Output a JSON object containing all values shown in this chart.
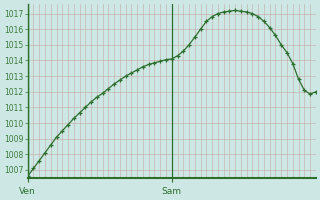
{
  "background_color": "#cde8e4",
  "plot_bg_color": "#cde8e4",
  "line_color": "#2d6e2d",
  "marker_color": "#2d6e2d",
  "vgrid_color": "#c4a8a8",
  "hgrid_color": "#c4a8a8",
  "axis_color": "#2d6e2d",
  "label_color": "#3a7a3a",
  "ylim": [
    1006.5,
    1017.6
  ],
  "yticks": [
    1007,
    1008,
    1009,
    1010,
    1011,
    1012,
    1013,
    1014,
    1015,
    1016,
    1017
  ],
  "xtick_labels": [
    "Ven",
    "Sam"
  ],
  "xtick_positions": [
    0.0,
    0.5
  ],
  "vline_positions": [
    0.0,
    0.5
  ],
  "n_vlines": 50,
  "x": [
    0.0,
    0.02,
    0.04,
    0.06,
    0.08,
    0.1,
    0.12,
    0.14,
    0.16,
    0.18,
    0.2,
    0.22,
    0.24,
    0.26,
    0.28,
    0.3,
    0.32,
    0.34,
    0.36,
    0.38,
    0.4,
    0.42,
    0.44,
    0.46,
    0.48,
    0.5,
    0.52,
    0.54,
    0.56,
    0.58,
    0.6,
    0.62,
    0.64,
    0.66,
    0.68,
    0.7,
    0.72,
    0.74,
    0.76,
    0.78,
    0.8,
    0.82,
    0.84,
    0.86,
    0.88,
    0.9,
    0.92,
    0.94,
    0.96,
    0.98,
    1.0
  ],
  "y": [
    1006.6,
    1007.1,
    1007.6,
    1008.1,
    1008.6,
    1009.1,
    1009.5,
    1009.9,
    1010.3,
    1010.65,
    1011.0,
    1011.35,
    1011.65,
    1011.9,
    1012.2,
    1012.5,
    1012.75,
    1013.0,
    1013.2,
    1013.4,
    1013.6,
    1013.75,
    1013.85,
    1013.95,
    1014.05,
    1014.1,
    1014.3,
    1014.6,
    1015.0,
    1015.5,
    1016.0,
    1016.5,
    1016.8,
    1017.0,
    1017.1,
    1017.15,
    1017.2,
    1017.15,
    1017.1,
    1017.0,
    1016.8,
    1016.5,
    1016.1,
    1015.6,
    1015.0,
    1014.5,
    1013.8,
    1012.8,
    1012.1,
    1011.85,
    1012.0
  ]
}
